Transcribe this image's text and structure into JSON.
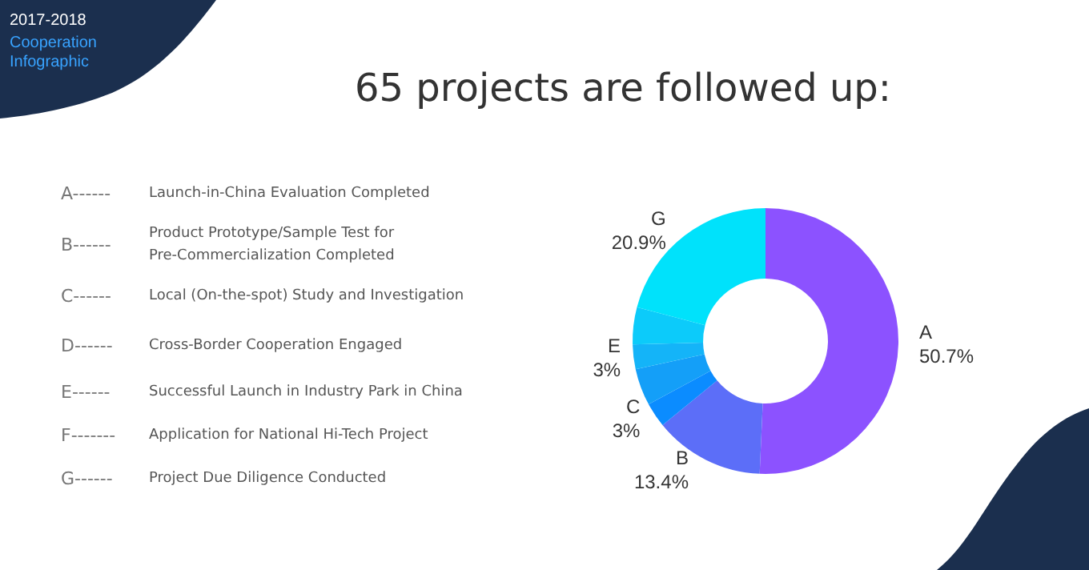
{
  "chart_data": {
    "type": "donut",
    "title": "65 projects are followed up:",
    "subtitle": "2017-2018\nCooperation\nInfographic",
    "categories": [
      "A",
      "B",
      "C",
      null,
      "E",
      null,
      "G"
    ],
    "values": [
      50.7,
      13.4,
      3,
      4.5,
      3,
      4.5,
      20.9
    ],
    "value_labels": [
      "50.7%",
      "13.4%",
      "3%",
      null,
      "3%",
      null,
      "20.9%"
    ],
    "colors": [
      "#8c52ff",
      "#5c6ef8",
      "#0b8cff",
      "#149ff8",
      "#14b4f8",
      "#0ccbfa",
      "#00e2fb"
    ],
    "annotations": [
      "A------ Launch-in-China Evaluation Completed",
      "B------ Product Prototype/Sample Test for\nPre-Commercialization Completed",
      "C------ Local (On-the-spot) Study and Investigation",
      "D------ Cross-Border Cooperation Engaged",
      "E------ Successful Launch in Industry Park in China",
      "F------- Application for National Hi-Tech Project",
      "G------ Project Due Diligence Conducted"
    ]
  }
}
